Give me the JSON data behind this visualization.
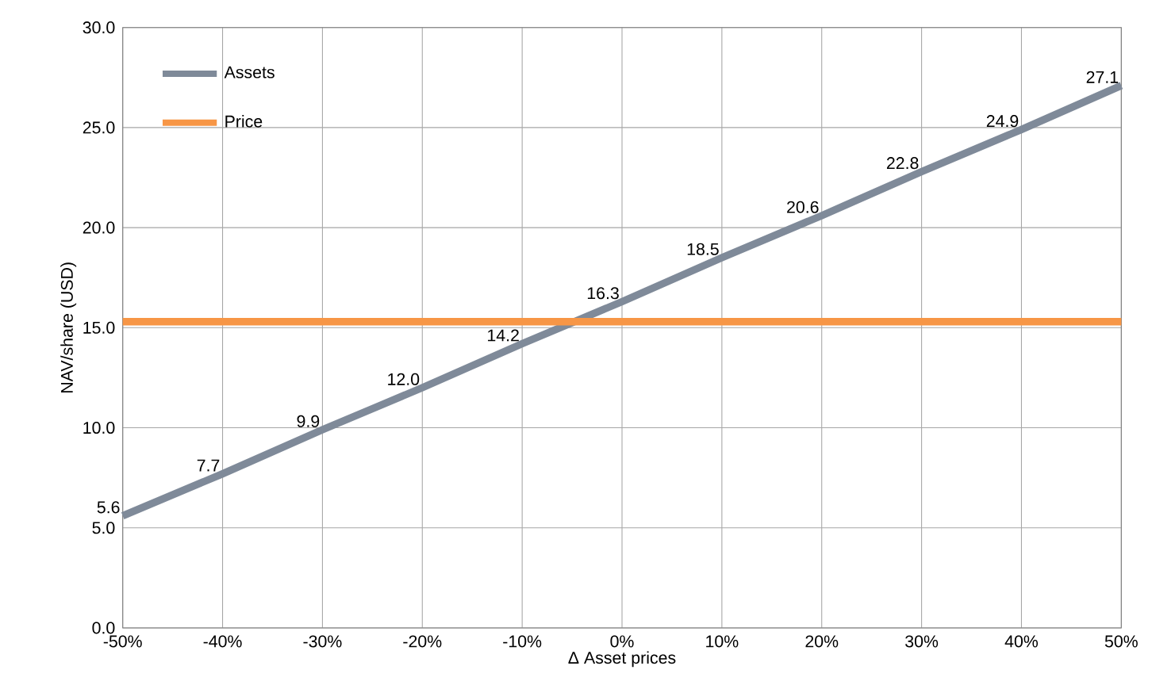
{
  "chart_data": {
    "type": "line",
    "xlabel": "Δ Asset prices",
    "ylabel": "NAV/share (USD)",
    "x": [
      -50,
      -40,
      -30,
      -20,
      -10,
      0,
      10,
      20,
      30,
      40,
      50
    ],
    "series": [
      {
        "name": "Assets",
        "color": "#7f8a99",
        "values": [
          5.6,
          7.7,
          9.9,
          12.0,
          14.2,
          16.3,
          18.5,
          20.6,
          22.8,
          24.9,
          27.1
        ],
        "value_labels": [
          "5.6",
          "7.7",
          "9.9",
          "12.0",
          "14.2",
          "16.3",
          "18.5",
          "20.6",
          "22.8",
          "24.9",
          "27.1"
        ]
      },
      {
        "name": "Price",
        "color": "#f79646",
        "values": [
          15.3,
          15.3,
          15.3,
          15.3,
          15.3,
          15.3,
          15.3,
          15.3,
          15.3,
          15.3,
          15.3
        ]
      }
    ],
    "xlim": [
      -50,
      50
    ],
    "xticks": [
      {
        "value": -50,
        "label": "-50%"
      },
      {
        "value": -40,
        "label": "-40%"
      },
      {
        "value": -30,
        "label": "-30%"
      },
      {
        "value": -20,
        "label": "-20%"
      },
      {
        "value": -10,
        "label": "-10%"
      },
      {
        "value": 0,
        "label": "0%"
      },
      {
        "value": 10,
        "label": "10%"
      },
      {
        "value": 20,
        "label": "20%"
      },
      {
        "value": 30,
        "label": "30%"
      },
      {
        "value": 40,
        "label": "40%"
      },
      {
        "value": 50,
        "label": "50%"
      }
    ],
    "ylim": [
      0,
      30
    ],
    "yticks": [
      {
        "value": 0,
        "label": "0.0"
      },
      {
        "value": 5,
        "label": "5.0"
      },
      {
        "value": 10,
        "label": "10.0"
      },
      {
        "value": 15,
        "label": "15.0"
      },
      {
        "value": 20,
        "label": "20.0"
      },
      {
        "value": 25,
        "label": "25.0"
      },
      {
        "value": 30,
        "label": "30.0"
      }
    ],
    "grid": true,
    "legend": "top left",
    "marker": "none",
    "line_style": "solid"
  }
}
